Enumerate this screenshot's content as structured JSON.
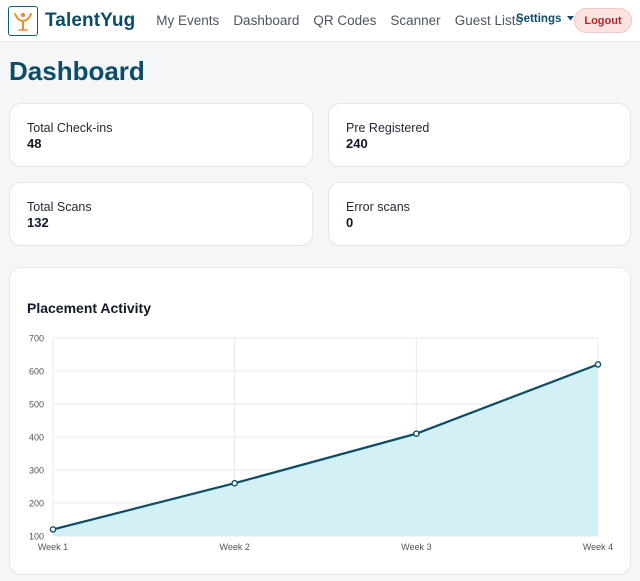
{
  "nav": {
    "brand": "TalentYug",
    "links": [
      "My Events",
      "Dashboard",
      "QR Codes",
      "Scanner",
      "Guest Lists"
    ],
    "settings_label": "Settings",
    "logout_label": "Logout"
  },
  "page_title": "Dashboard",
  "stats": [
    {
      "label": "Total Check-ins",
      "value": "48"
    },
    {
      "label": "Pre Registered",
      "value": "240"
    },
    {
      "label": "Total Scans",
      "value": "132"
    },
    {
      "label": "Error scans",
      "value": "0"
    }
  ],
  "chart_data": {
    "type": "area",
    "title": "Placement Activity",
    "categories": [
      "Week 1",
      "Week 2",
      "Week 3",
      "Week 4"
    ],
    "values": [
      120,
      260,
      410,
      620
    ],
    "ylim": [
      100,
      700
    ],
    "yticks": [
      100,
      200,
      300,
      400,
      500,
      600,
      700
    ],
    "grid": true,
    "line_color": "#0b4d66",
    "fill_color": "#cdeef5"
  }
}
